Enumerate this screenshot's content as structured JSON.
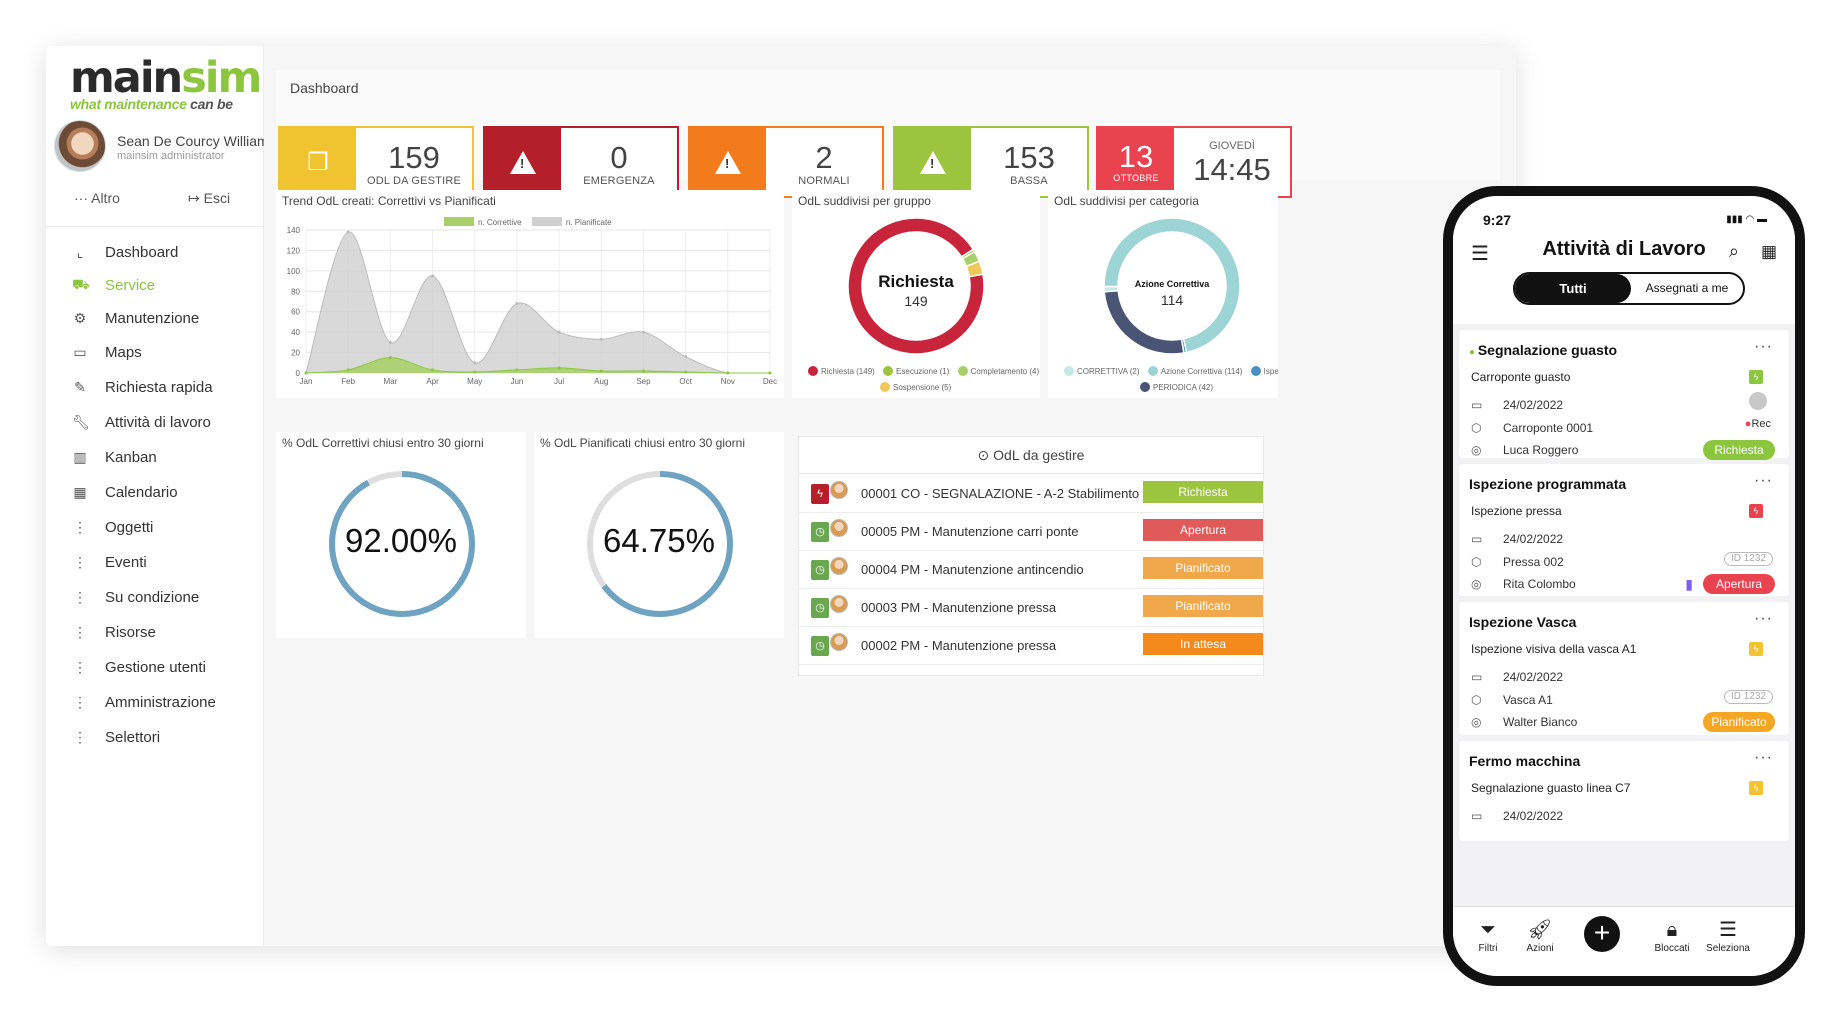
{
  "brand": {
    "logo_main_a": "main",
    "logo_main_b": "sim",
    "logo_tag_a": "what maintenance ",
    "logo_tag_b": "can be",
    "accent": "#8cc63f"
  },
  "user": {
    "name": "Sean De Courcy William",
    "role": "mainsim administrator",
    "altro_label": "Altro",
    "esci_label": "Esci"
  },
  "nav": {
    "items": [
      {
        "label": "Dashboard",
        "icon": "chart-icon"
      },
      {
        "label": "Service",
        "icon": "service-icon"
      },
      {
        "label": "Manutenzione",
        "icon": "wrench-gear-icon"
      },
      {
        "label": "Maps",
        "icon": "map-icon"
      },
      {
        "label": "Richiesta rapida",
        "icon": "magic-wand-icon"
      },
      {
        "label": "Attività di lavoro",
        "icon": "wrench-icon"
      },
      {
        "label": "Kanban",
        "icon": "kanban-icon"
      },
      {
        "label": "Calendario",
        "icon": "calendar-icon"
      },
      {
        "label": "Oggetti",
        "icon": "dots-vertical-icon"
      },
      {
        "label": "Eventi",
        "icon": "dots-vertical-icon"
      },
      {
        "label": "Su condizione",
        "icon": "dots-vertical-icon"
      },
      {
        "label": "Risorse",
        "icon": "dots-vertical-icon"
      },
      {
        "label": "Gestione utenti",
        "icon": "dots-vertical-icon"
      },
      {
        "label": "Amministrazione",
        "icon": "dots-vertical-icon"
      },
      {
        "label": "Selettori",
        "icon": "dots-vertical-icon"
      }
    ]
  },
  "dashboard": {
    "breadcrumb": "Dashboard",
    "kpis": [
      {
        "value": "159",
        "caption": "ODL DA GESTIRE",
        "color": "#f0c330",
        "icon": "copy-icon"
      },
      {
        "value": "0",
        "caption": "EMERGENZA",
        "color": "#b3202a",
        "icon": "warning-icon"
      },
      {
        "value": "2",
        "caption": "NORMALI",
        "color": "#f47b1c",
        "icon": "warning-icon"
      },
      {
        "value": "153",
        "caption": "BASSA",
        "color": "#9dc43f",
        "icon": "warning-icon"
      }
    ],
    "date_kpi": {
      "day": "13",
      "month": "OTTOBRE",
      "weekday": "GIOVEDÌ",
      "time": "14:45",
      "color": "#e8434e"
    }
  },
  "trend": {
    "title": "Trend OdL creati: Correttivi vs Pianificati",
    "legend_a": "n. Correttive",
    "legend_b": "n. Pianificate"
  },
  "gruppo": {
    "title": "OdL suddivisi per gruppo",
    "center_label": "Richiesta",
    "center_value": "149",
    "legend": [
      "Richiesta (149)",
      "Esecuzione (1)",
      "Completamento (4)",
      "Sospensione (5)"
    ]
  },
  "categoria": {
    "title": "OdL suddivisi per categoria",
    "center_label": "Azione Correttiva",
    "center_value": "114",
    "legend": [
      "CORRETTIVA (2)",
      "Azione Correttiva (114)",
      "Ispezione",
      "PERIODICA (42)"
    ]
  },
  "gauge_corr": {
    "title": "% OdL Correttivi chiusi entro 30 giorni",
    "value_label": "92.00%",
    "value": 92.0
  },
  "gauge_pian": {
    "title": "% OdL Pianificati chiusi entro 30 giorni",
    "value_label": "64.75%",
    "value": 64.75
  },
  "odl_table": {
    "title": "OdL da gestire",
    "rows": [
      {
        "text": "00001 CO - SEGNALAZIONE - A-2 Stabilimento - ...",
        "status": "Richiesta",
        "status_color": "#9dc43f",
        "icon_color": "#b3202a",
        "icon": "bolt-icon"
      },
      {
        "text": "00005 PM - Manutenzione carri ponte",
        "status": "Apertura",
        "status_color": "#e05a5a",
        "icon_color": "#6aa84f",
        "icon": "clock-icon"
      },
      {
        "text": "00004 PM - Manutenzione antincendio",
        "status": "Pianificato",
        "status_color": "#f0a84b",
        "icon_color": "#6aa84f",
        "icon": "clock-icon"
      },
      {
        "text": "00003 PM - Manutenzione pressa",
        "status": "Pianificato",
        "status_color": "#f0a84b",
        "icon_color": "#6aa84f",
        "icon": "clock-icon"
      },
      {
        "text": "00002 PM - Manutenzione pressa",
        "status": "In attesa",
        "status_color": "#f48a1c",
        "icon_color": "#6aa84f",
        "icon": "clock-icon"
      }
    ]
  },
  "phone": {
    "time": "9:27",
    "title": "Attività di Lavoro",
    "seg_all": "Tutti",
    "seg_mine": "Assegnati a me",
    "cards": [
      {
        "title": "Segnalazione guasto",
        "sub": "Carroponte guasto",
        "date": "24/02/2022",
        "asset": "Carroponte 0001",
        "person": "Luca Roggero",
        "badge": "Richiesta",
        "badge_color": "#8cc63f",
        "flag_color": "#8cc63f",
        "extra": "Rec"
      },
      {
        "title": "Ispezione programmata",
        "sub": "Ispezione pressa",
        "date": "24/02/2022",
        "asset": "Pressa 002",
        "person": "Rita Colombo",
        "badge": "Apertura",
        "badge_color": "#e8434e",
        "flag_color": "#e8434e",
        "id": "ID 1232"
      },
      {
        "title": "Ispezione Vasca",
        "sub": "Ispezione visiva della vasca A1",
        "date": "24/02/2022",
        "asset": "Vasca A1",
        "person": "Walter Bianco",
        "badge": "Pianificato",
        "badge_color": "#f5a623",
        "flag_color": "#f5c330",
        "id": "ID 1232"
      },
      {
        "title": "Fermo macchina",
        "sub": "Segnalazione guasto linea C7",
        "date": "24/02/2022",
        "flag_color": "#f5c330"
      }
    ],
    "tabs": {
      "filtri": "Filtri",
      "azioni": "Azioni",
      "bloccati": "Bloccati",
      "seleziona": "Seleziona"
    }
  },
  "chart_data": [
    {
      "type": "area",
      "title": "Trend OdL creati: Correttivi vs Pianificati",
      "categories": [
        "Jan",
        "Feb",
        "Mar",
        "Apr",
        "May",
        "Jun",
        "Jul",
        "Aug",
        "Sep",
        "Oct",
        "Nov",
        "Dec"
      ],
      "ylim": [
        0,
        140
      ],
      "yticks": [
        0,
        20,
        40,
        60,
        80,
        100,
        120,
        140
      ],
      "series": [
        {
          "name": "n. Correttive",
          "color": "#a9cf6a",
          "values": [
            0,
            3,
            15,
            3,
            1,
            3,
            5,
            2,
            2,
            1,
            0,
            0
          ]
        },
        {
          "name": "n. Pianificate",
          "color": "#cccccc",
          "values": [
            0,
            138,
            30,
            95,
            10,
            68,
            40,
            33,
            40,
            16,
            0,
            0
          ]
        }
      ]
    },
    {
      "type": "pie",
      "title": "OdL suddivisi per gruppo",
      "labels": [
        "Richiesta",
        "Esecuzione",
        "Completamento",
        "Sospensione"
      ],
      "values": [
        149,
        1,
        4,
        5
      ],
      "colors": [
        "#c8243b",
        "#9dc43f",
        "#a9cf6a",
        "#f0c85a"
      ]
    },
    {
      "type": "pie",
      "title": "OdL suddivisi per categoria",
      "labels": [
        "CORRETTIVA",
        "Azione Correttiva",
        "Ispezione",
        "PERIODICA"
      ],
      "values": [
        2,
        114,
        1,
        42
      ],
      "colors": [
        "#c7e8e6",
        "#9dd4d6",
        "#4a8fc4",
        "#4a5576"
      ]
    }
  ]
}
